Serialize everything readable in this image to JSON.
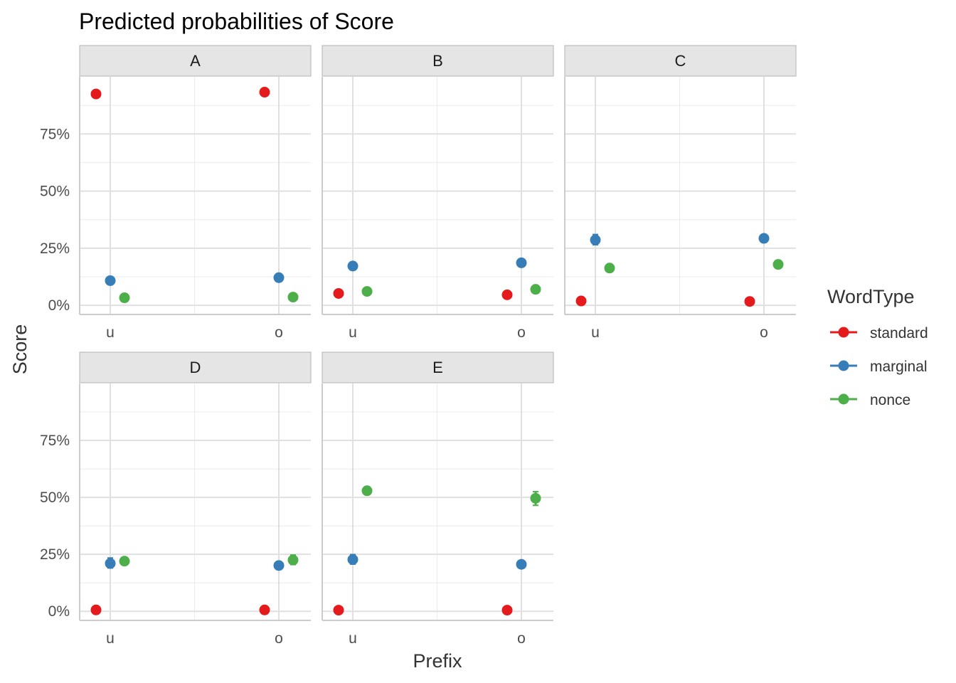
{
  "chart_data": {
    "type": "scatter",
    "title": "Predicted probabilities of Score",
    "xlabel": "Prefix",
    "ylabel": "Score",
    "x_categories": [
      "u",
      "o"
    ],
    "y_ticks": [
      0,
      25,
      50,
      75
    ],
    "y_tick_labels": [
      "0%",
      "25%",
      "50%",
      "75%"
    ],
    "ylim": [
      -4,
      100
    ],
    "legend": {
      "title": "WordType",
      "placement": "right",
      "entries": [
        "standard",
        "marginal",
        "nonce"
      ]
    },
    "colors": {
      "standard": "#E41A1C",
      "marginal": "#377EB8",
      "nonce": "#4DAF4A"
    },
    "panels": [
      {
        "label": "A",
        "series": [
          {
            "name": "standard",
            "points": [
              {
                "x": "u",
                "y": 92.5,
                "lo": 92.0,
                "hi": 93.0
              },
              {
                "x": "o",
                "y": 93.3,
                "lo": 92.8,
                "hi": 93.8
              }
            ]
          },
          {
            "name": "marginal",
            "points": [
              {
                "x": "u",
                "y": 10.8,
                "lo": 10.2,
                "hi": 11.4
              },
              {
                "x": "o",
                "y": 12.1,
                "lo": 11.5,
                "hi": 12.7
              }
            ]
          },
          {
            "name": "nonce",
            "points": [
              {
                "x": "u",
                "y": 3.3,
                "lo": 3.0,
                "hi": 3.6
              },
              {
                "x": "o",
                "y": 3.6,
                "lo": 3.3,
                "hi": 3.9
              }
            ]
          }
        ]
      },
      {
        "label": "B",
        "series": [
          {
            "name": "standard",
            "points": [
              {
                "x": "u",
                "y": 5.2,
                "lo": 4.8,
                "hi": 5.6
              },
              {
                "x": "o",
                "y": 4.6,
                "lo": 4.2,
                "hi": 5.0
              }
            ]
          },
          {
            "name": "marginal",
            "points": [
              {
                "x": "u",
                "y": 17.2,
                "lo": 16.0,
                "hi": 18.6
              },
              {
                "x": "o",
                "y": 18.6,
                "lo": 18.0,
                "hi": 19.2
              }
            ]
          },
          {
            "name": "nonce",
            "points": [
              {
                "x": "u",
                "y": 6.1,
                "lo": 5.7,
                "hi": 6.5
              },
              {
                "x": "o",
                "y": 7.0,
                "lo": 6.6,
                "hi": 7.4
              }
            ]
          }
        ]
      },
      {
        "label": "C",
        "series": [
          {
            "name": "standard",
            "points": [
              {
                "x": "u",
                "y": 1.9,
                "lo": 1.7,
                "hi": 2.1
              },
              {
                "x": "o",
                "y": 1.7,
                "lo": 1.5,
                "hi": 1.9
              }
            ]
          },
          {
            "name": "marginal",
            "points": [
              {
                "x": "u",
                "y": 28.6,
                "lo": 26.5,
                "hi": 31.0
              },
              {
                "x": "o",
                "y": 29.3,
                "lo": 28.7,
                "hi": 29.9
              }
            ]
          },
          {
            "name": "nonce",
            "points": [
              {
                "x": "u",
                "y": 16.3,
                "lo": 15.8,
                "hi": 16.8
              },
              {
                "x": "o",
                "y": 17.9,
                "lo": 16.8,
                "hi": 19.0
              }
            ]
          }
        ]
      },
      {
        "label": "D",
        "series": [
          {
            "name": "standard",
            "points": [
              {
                "x": "u",
                "y": 0.6,
                "lo": 0.5,
                "hi": 0.7
              },
              {
                "x": "o",
                "y": 0.6,
                "lo": 0.5,
                "hi": 0.7
              }
            ]
          },
          {
            "name": "marginal",
            "points": [
              {
                "x": "u",
                "y": 21.0,
                "lo": 19.0,
                "hi": 23.4
              },
              {
                "x": "o",
                "y": 20.1,
                "lo": 19.5,
                "hi": 20.7
              }
            ]
          },
          {
            "name": "nonce",
            "points": [
              {
                "x": "u",
                "y": 22.0,
                "lo": 21.4,
                "hi": 22.6
              },
              {
                "x": "o",
                "y": 22.5,
                "lo": 20.5,
                "hi": 24.7
              }
            ]
          }
        ]
      },
      {
        "label": "E",
        "series": [
          {
            "name": "standard",
            "points": [
              {
                "x": "u",
                "y": 0.5,
                "lo": 0.4,
                "hi": 0.6
              },
              {
                "x": "o",
                "y": 0.5,
                "lo": 0.4,
                "hi": 0.6
              }
            ]
          },
          {
            "name": "marginal",
            "points": [
              {
                "x": "u",
                "y": 22.7,
                "lo": 20.7,
                "hi": 24.9
              },
              {
                "x": "o",
                "y": 20.6,
                "lo": 20.0,
                "hi": 21.2
              }
            ]
          },
          {
            "name": "nonce",
            "points": [
              {
                "x": "u",
                "y": 52.9,
                "lo": 52.3,
                "hi": 53.5
              },
              {
                "x": "o",
                "y": 49.6,
                "lo": 46.5,
                "hi": 52.5
              }
            ]
          }
        ]
      }
    ]
  }
}
